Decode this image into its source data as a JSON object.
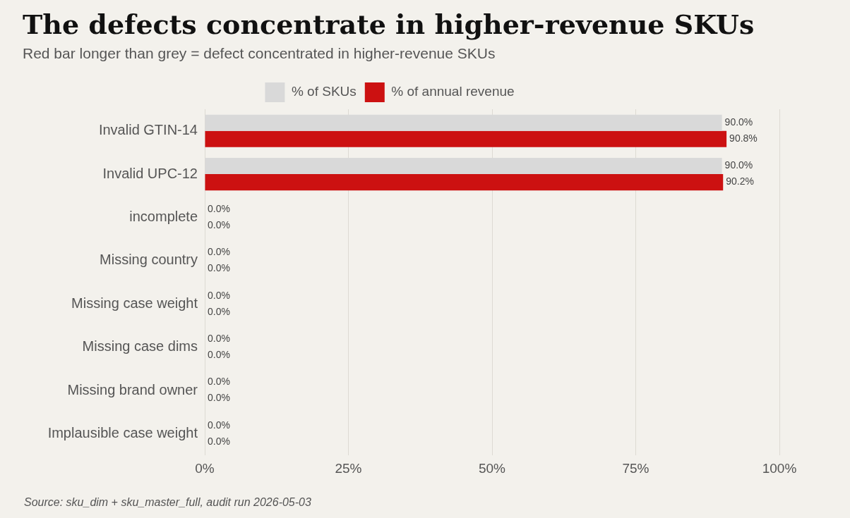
{
  "chart_data": {
    "type": "bar",
    "orientation": "horizontal",
    "title": "The defects concentrate in higher-revenue SKUs",
    "subtitle": "Red bar longer than grey = defect concentrated in higher-revenue SKUs",
    "categories": [
      "Invalid GTIN-14",
      "Invalid UPC-12",
      "incomplete",
      "Missing country",
      "Missing case weight",
      "Missing case dims",
      "Missing brand owner",
      "Implausible case weight"
    ],
    "series": [
      {
        "name": "% of SKUs",
        "color": "#d9d9d9",
        "values": [
          90.0,
          90.0,
          0,
          0,
          0,
          0,
          0,
          0
        ],
        "value_labels": [
          "90.0%",
          "90.0%",
          "0.0%",
          "0.0%",
          "0.0%",
          "0.0%",
          "0.0%",
          "0.0%"
        ]
      },
      {
        "name": "% of annual revenue",
        "color": "#cc1111",
        "values": [
          90.8,
          90.2,
          0,
          0,
          0,
          0,
          0,
          0
        ],
        "value_labels": [
          "90.8%",
          "90.2%",
          "0.0%",
          "0.0%",
          "0.0%",
          "0.0%",
          "0.0%",
          "0.0%"
        ]
      }
    ],
    "xlim": [
      0,
      100
    ],
    "xticks": [
      {
        "value": 0,
        "label": "0%"
      },
      {
        "value": 25,
        "label": "25%"
      },
      {
        "value": 50,
        "label": "50%"
      },
      {
        "value": 75,
        "label": "75%"
      },
      {
        "value": 100,
        "label": "100%"
      }
    ],
    "grid": "x",
    "legend": "top",
    "annotations": [
      "Source: sku_dim + sku_master_full, audit run 2026-05-03"
    ]
  }
}
